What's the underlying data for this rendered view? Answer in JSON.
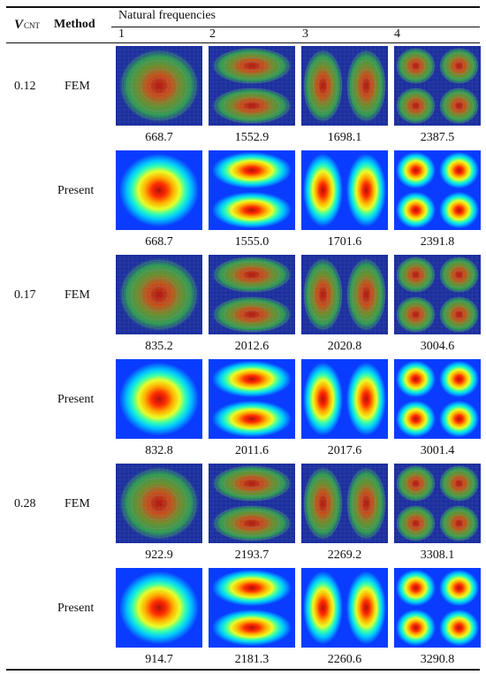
{
  "header": {
    "vcnt_symbol": "V",
    "vcnt_sub": "CNT",
    "method": "Method",
    "natural_frequencies": "Natural frequencies",
    "modes": [
      "1",
      "2",
      "3",
      "4"
    ]
  },
  "groups": [
    {
      "vcnt": "0.12",
      "rows": [
        {
          "method": "FEM",
          "frequencies": [
            "668.7",
            "1552.9",
            "1698.1",
            "2387.5"
          ]
        },
        {
          "method": "Present",
          "frequencies": [
            "668.7",
            "1555.0",
            "1701.6",
            "2391.8"
          ]
        }
      ]
    },
    {
      "vcnt": "0.17",
      "rows": [
        {
          "method": "FEM",
          "frequencies": [
            "835.2",
            "2012.6",
            "2020.8",
            "3004.6"
          ]
        },
        {
          "method": "Present",
          "frequencies": [
            "832.8",
            "2011.6",
            "2017.6",
            "3001.4"
          ]
        }
      ]
    },
    {
      "vcnt": "0.28",
      "rows": [
        {
          "method": "FEM",
          "frequencies": [
            "922.9",
            "2193.7",
            "2269.2",
            "3308.1"
          ]
        },
        {
          "method": "Present",
          "frequencies": [
            "914.7",
            "2181.3",
            "2260.6",
            "3290.8"
          ]
        }
      ]
    }
  ],
  "colors": {
    "present_background": "#0a3cff",
    "fem_background": "#1c2fa0",
    "peak": "#b0120f"
  }
}
